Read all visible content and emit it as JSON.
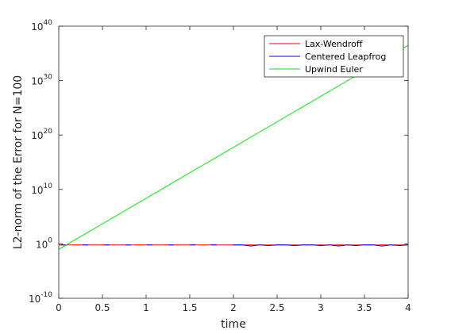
{
  "chart_data": {
    "type": "line",
    "title": "",
    "xlabel": "time",
    "ylabel": "L2-norm of the Error for N=100",
    "xlim": [
      0,
      4
    ],
    "yscale": "log",
    "ylim_exponents": [
      -10,
      40
    ],
    "x_ticks": [
      "0",
      "0.5",
      "1",
      "1.5",
      "2",
      "2.5",
      "3",
      "3.5",
      "4"
    ],
    "y_ticks": [
      {
        "exp": -10,
        "label": "10",
        "sup": "-10"
      },
      {
        "exp": 0,
        "label": "10",
        "sup": "0"
      },
      {
        "exp": 10,
        "label": "10",
        "sup": "10"
      },
      {
        "exp": 20,
        "label": "10",
        "sup": "20"
      },
      {
        "exp": 30,
        "label": "10",
        "sup": "30"
      },
      {
        "exp": 40,
        "label": "10",
        "sup": "40"
      }
    ],
    "legend_position": "top-right",
    "grid": false,
    "series": [
      {
        "name": "Lax-Wendroff",
        "color": "#ff0000",
        "style": "solid",
        "x": [
          0,
          4
        ],
        "log10_y": [
          -0.2,
          -0.2
        ]
      },
      {
        "name": "Centered Leapfrog",
        "color": "#0000ff",
        "style": "dashed-then-solid",
        "x": [
          0,
          0.25,
          0.5,
          0.75,
          1.0,
          1.25,
          1.5,
          1.75,
          2.0,
          2.1,
          2.2,
          2.3,
          2.4,
          2.5,
          2.6,
          2.7,
          2.8,
          2.9,
          3.0,
          3.1,
          3.2,
          3.3,
          3.4,
          3.5,
          3.6,
          3.7,
          3.8,
          3.9,
          4.0
        ],
        "log10_y": [
          -0.2,
          -0.2,
          -0.2,
          -0.2,
          -0.2,
          -0.2,
          -0.2,
          -0.2,
          -0.2,
          -0.2,
          -0.4,
          -0.2,
          -0.3,
          -0.2,
          -0.2,
          -0.3,
          -0.2,
          -0.2,
          -0.3,
          -0.2,
          -0.4,
          -0.2,
          -0.3,
          -0.2,
          -0.2,
          -0.4,
          -0.2,
          -0.3,
          -0.2
        ]
      },
      {
        "name": "Upwind Euler",
        "color": "#00ee00",
        "style": "solid",
        "x": [
          0,
          4
        ],
        "log10_y": [
          -1.0,
          36.5
        ]
      }
    ]
  }
}
